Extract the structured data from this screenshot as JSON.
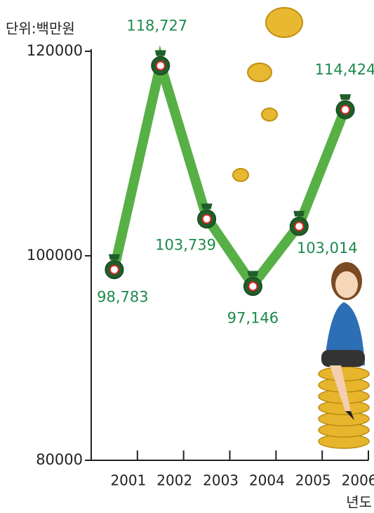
{
  "chart_data": {
    "type": "line",
    "y_label": "단위:백만원",
    "x_label": "년도",
    "categories": [
      "2001",
      "2002",
      "2003",
      "2004",
      "2005",
      "2006"
    ],
    "series": [
      {
        "name": null,
        "color": "#57b046",
        "values": [
          98783,
          118727,
          103739,
          97146,
          103014,
          114424
        ],
        "value_labels": [
          "98,783",
          "118,727",
          "103,739",
          "97,146",
          "103,014",
          "114,424"
        ]
      }
    ],
    "ylim": [
      80000,
      120000
    ],
    "yticks": [
      80000,
      100000,
      120000
    ],
    "grid": false
  }
}
